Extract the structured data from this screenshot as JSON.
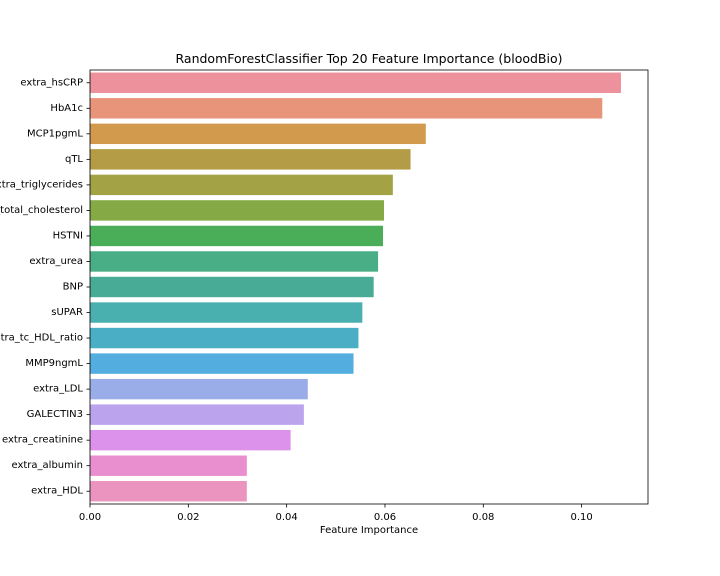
{
  "chart_data": {
    "type": "bar",
    "orientation": "horizontal",
    "title": "RandomForestClassifier Top 20 Feature Importance (bloodBio)",
    "xlabel": "Feature Importance",
    "ylabel": "",
    "xlim": [
      0,
      0.1135
    ],
    "xticks": [
      0.0,
      0.02,
      0.04,
      0.06,
      0.08,
      0.1
    ],
    "xtick_labels": [
      "0.00",
      "0.02",
      "0.04",
      "0.06",
      "0.08",
      "0.10"
    ],
    "grid": false,
    "legend": "none",
    "categories": [
      "extra_hsCRP",
      "HbA1c",
      "MCP1pgmL",
      "qTL",
      "extra_triglycerides",
      "extra_total_cholesterol",
      "HSTNI",
      "extra_urea",
      "BNP",
      "sUPAR",
      "extra_tc_HDL_ratio",
      "MMP9ngmL",
      "extra_LDL",
      "GALECTIN3",
      "extra_creatinine",
      "extra_albumin",
      "extra_HDL"
    ],
    "values": [
      0.108,
      0.1042,
      0.0683,
      0.0652,
      0.0616,
      0.0598,
      0.0596,
      0.0586,
      0.0577,
      0.0554,
      0.0546,
      0.0536,
      0.0443,
      0.0435,
      0.0408,
      0.0319,
      0.0319
    ],
    "colors": [
      "#ed919c",
      "#e8947b",
      "#d29a4c",
      "#b39c45",
      "#a3a245",
      "#85a944",
      "#4aad57",
      "#49ad86",
      "#48ab96",
      "#4aafaf",
      "#4aaec4",
      "#54addf",
      "#9bade9",
      "#bba4ed",
      "#dc91ea",
      "#e98ecf",
      "#ec94c0"
    ]
  }
}
